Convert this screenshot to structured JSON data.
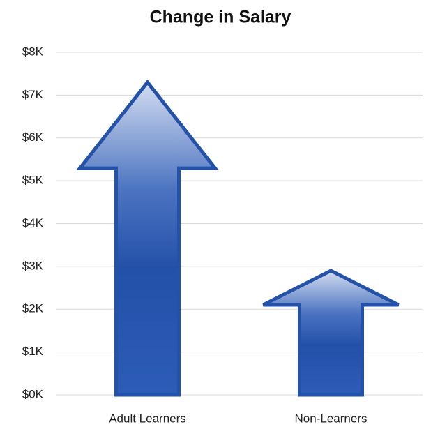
{
  "chart_data": {
    "type": "bar",
    "title": "Change in Salary",
    "categories": [
      "Adult Learners",
      "Non-Learners"
    ],
    "values": [
      7.3,
      2.9
    ],
    "color": "#2352a8",
    "ylim": [
      0,
      8
    ],
    "yticks": [
      {
        "value": 0,
        "label": "$0K"
      },
      {
        "value": 1,
        "label": "$1K"
      },
      {
        "value": 2,
        "label": "$2K"
      },
      {
        "value": 3,
        "label": "$3K"
      },
      {
        "value": 4,
        "label": "$4K"
      },
      {
        "value": 5,
        "label": "$5K"
      },
      {
        "value": 6,
        "label": "$6K"
      },
      {
        "value": 7,
        "label": "$7K"
      },
      {
        "value": 8,
        "label": "$8K"
      }
    ],
    "grid": true
  }
}
